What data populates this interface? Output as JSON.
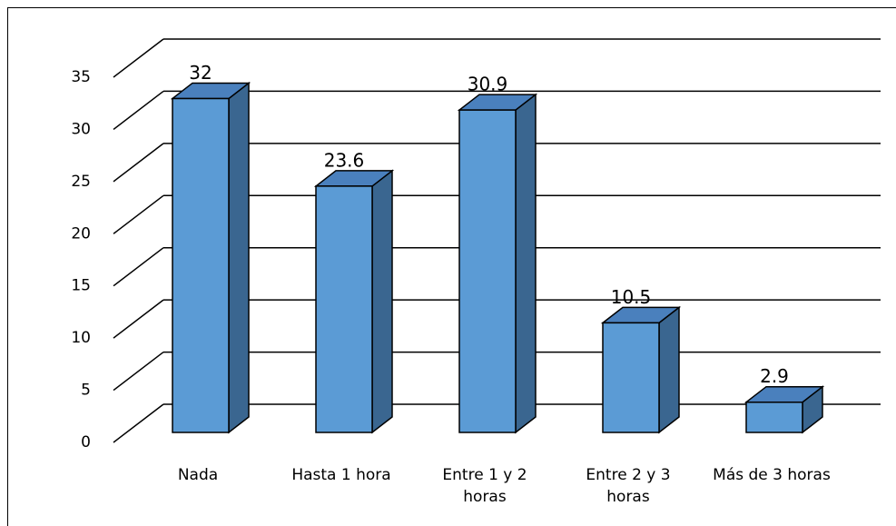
{
  "chart_data": {
    "type": "bar3d",
    "categories": [
      "Nada",
      "Hasta 1 hora",
      "Entre 1 y 2 horas",
      "Entre 2 y 3 horas",
      "Más de 3 horas"
    ],
    "values": [
      32,
      23.6,
      30.9,
      10.5,
      2.9
    ],
    "color": "#5b9bd5",
    "ylim": [
      0,
      35
    ],
    "yticks": [
      0,
      5,
      10,
      15,
      20,
      25,
      30,
      35
    ],
    "grid": true
  }
}
